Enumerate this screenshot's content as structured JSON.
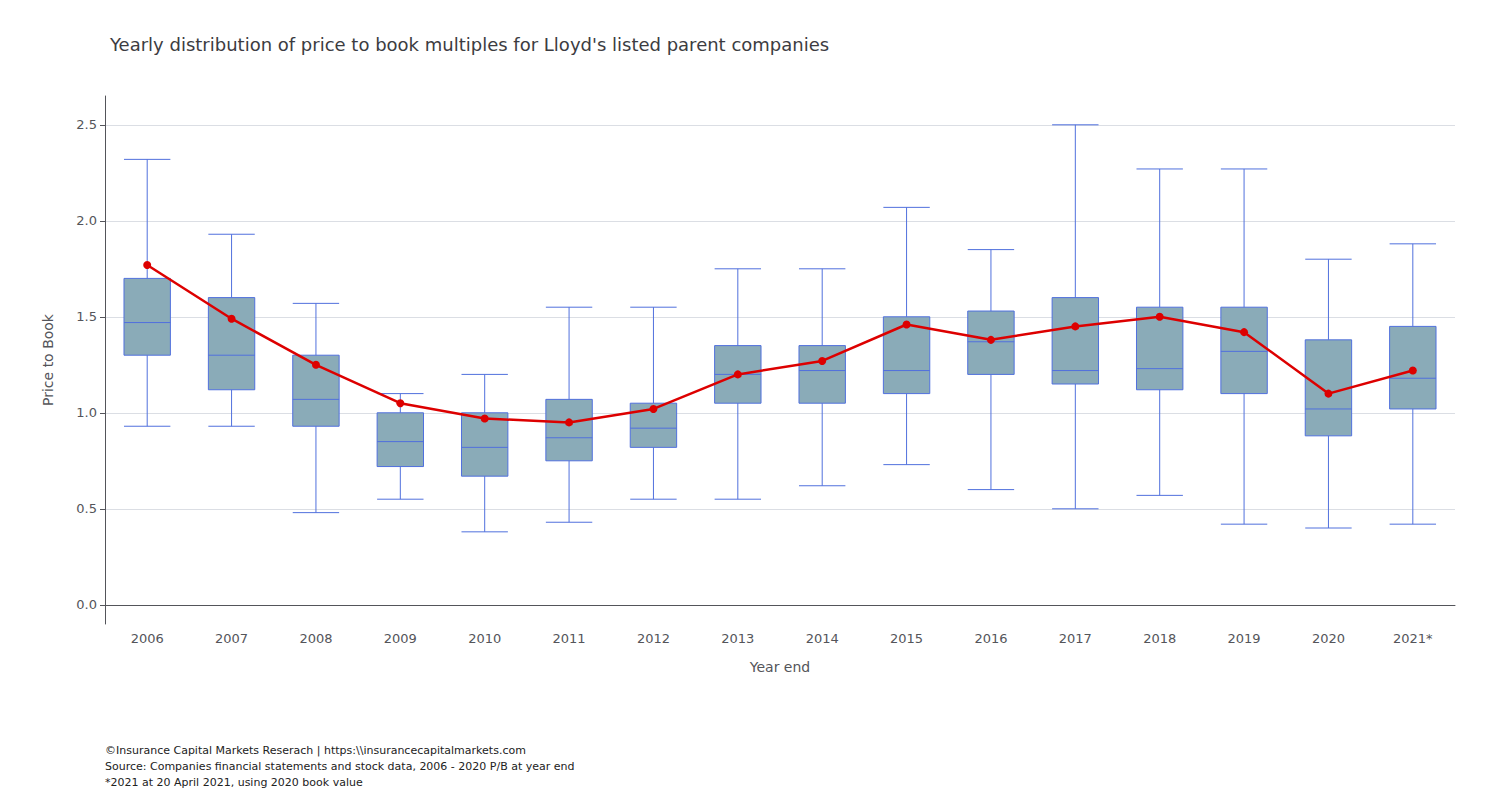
{
  "chart_data": {
    "type": "boxplot",
    "title": "Yearly distribution of price to book multiples for Lloyd's listed parent companies",
    "xlabel": "Year end",
    "ylabel": "Price to Book",
    "categories": [
      "2006",
      "2007",
      "2008",
      "2009",
      "2010",
      "2011",
      "2012",
      "2013",
      "2014",
      "2015",
      "2016",
      "2017",
      "2018",
      "2019",
      "2020",
      "2021*"
    ],
    "series": [
      {
        "type": "boxplot",
        "color": "#8aabb8",
        "values": [
          {
            "whislo": 0.93,
            "q1": 1.3,
            "med": 1.47,
            "q3": 1.7,
            "whishi": 2.32
          },
          {
            "whislo": 0.93,
            "q1": 1.12,
            "med": 1.3,
            "q3": 1.6,
            "whishi": 1.93
          },
          {
            "whislo": 0.48,
            "q1": 0.93,
            "med": 1.07,
            "q3": 1.3,
            "whishi": 1.57
          },
          {
            "whislo": 0.55,
            "q1": 0.72,
            "med": 0.85,
            "q3": 1.0,
            "whishi": 1.1
          },
          {
            "whislo": 0.38,
            "q1": 0.67,
            "med": 0.82,
            "q3": 1.0,
            "whishi": 1.2
          },
          {
            "whislo": 0.43,
            "q1": 0.75,
            "med": 0.87,
            "q3": 1.07,
            "whishi": 1.55
          },
          {
            "whislo": 0.55,
            "q1": 0.82,
            "med": 0.92,
            "q3": 1.05,
            "whishi": 1.55
          },
          {
            "whislo": 0.55,
            "q1": 1.05,
            "med": 1.2,
            "q3": 1.35,
            "whishi": 1.75
          },
          {
            "whislo": 0.62,
            "q1": 1.05,
            "med": 1.22,
            "q3": 1.35,
            "whishi": 1.75
          },
          {
            "whislo": 0.73,
            "q1": 1.1,
            "med": 1.22,
            "q3": 1.5,
            "whishi": 2.07
          },
          {
            "whislo": 0.6,
            "q1": 1.2,
            "med": 1.37,
            "q3": 1.53,
            "whishi": 1.85
          },
          {
            "whislo": 0.5,
            "q1": 1.15,
            "med": 1.22,
            "q3": 1.6,
            "whishi": 2.5
          },
          {
            "whislo": 0.57,
            "q1": 1.12,
            "med": 1.23,
            "q3": 1.55,
            "whishi": 2.27
          },
          {
            "whislo": 0.42,
            "q1": 1.1,
            "med": 1.32,
            "q3": 1.55,
            "whishi": 2.27
          },
          {
            "whislo": 0.4,
            "q1": 0.88,
            "med": 1.02,
            "q3": 1.38,
            "whishi": 1.8
          },
          {
            "whislo": 0.42,
            "q1": 1.02,
            "med": 1.18,
            "q3": 1.45,
            "whishi": 1.88
          }
        ]
      },
      {
        "type": "line",
        "color": "#dd0000",
        "marker": "circle",
        "values": [
          1.77,
          1.49,
          1.25,
          1.05,
          0.97,
          0.95,
          1.02,
          1.2,
          1.27,
          1.46,
          1.38,
          1.45,
          1.5,
          1.42,
          1.1,
          1.22
        ]
      }
    ],
    "ylim": [
      -0.1,
      2.65
    ],
    "yticks": [
      {
        "value": 0,
        "label": "0.0"
      },
      0.5,
      {
        "value": 1,
        "label": "1.0"
      },
      1.5,
      {
        "value": 2,
        "label": "2.0"
      },
      2.5
    ],
    "grid": true,
    "annotations": [
      "©Insurance Capital Markets Reserach | https:\\\\insurancecapitalmarkets.com",
      "Source: Companies financial statements and stock data, 2006 - 2020 P/B at year end",
      "*2021 at 20 April 2021, using 2020 book value"
    ]
  }
}
